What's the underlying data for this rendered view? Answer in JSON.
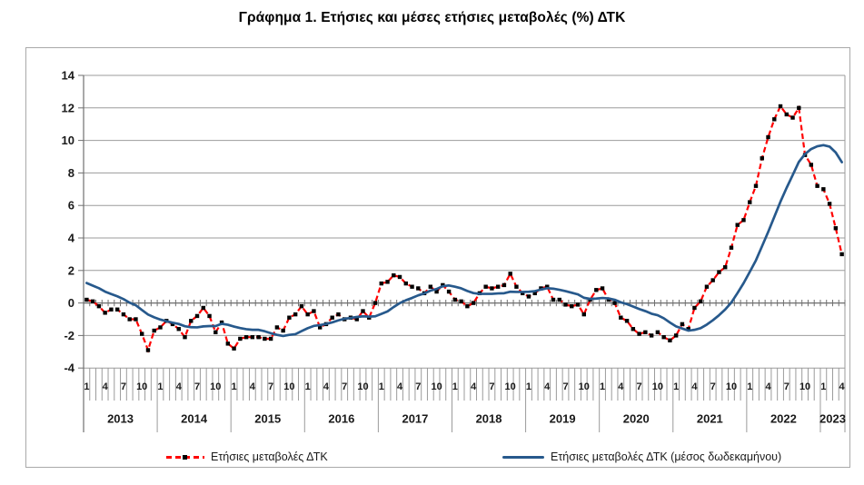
{
  "colors": {
    "red_series": "#FF0000",
    "marker": "#000000",
    "blue_series": "#27598C",
    "gridline": "#9B9B9B",
    "axis": "#707070",
    "text": "#1A1A1A",
    "frame_border": "#A9A9A9"
  },
  "chart_data": {
    "type": "line",
    "title": "Γράφημα 1. Ετήσιες και μέσες ετήσιες μεταβολές (%) ΔΤΚ",
    "ylabel": "",
    "xlabel": "",
    "ylim": [
      -4,
      14
    ],
    "y_tick_step": 2,
    "y_ticks": [
      "14",
      "12",
      "10",
      "8",
      "6",
      "4",
      "2",
      "0",
      "-2",
      "-4"
    ],
    "grid": "horizontal",
    "legend_position": "bottom",
    "years": [
      "2013",
      "2014",
      "2015",
      "2016",
      "2017",
      "2018",
      "2019",
      "2020",
      "2021",
      "2022",
      "2023"
    ],
    "months_per_year": [
      12,
      12,
      12,
      12,
      12,
      12,
      12,
      12,
      12,
      12,
      4
    ],
    "month_labels_shown": [
      "1",
      "4",
      "7",
      "10"
    ],
    "series": [
      {
        "name": "Ετήσιες μεταβολές ΔΤΚ",
        "style": "dashed-red-with-black-square-markers",
        "values": [
          0.2,
          0.1,
          -0.2,
          -0.6,
          -0.4,
          -0.4,
          -0.7,
          -1.0,
          -1.0,
          -1.9,
          -2.9,
          -1.7,
          -1.5,
          -1.1,
          -1.3,
          -1.6,
          -2.1,
          -1.1,
          -0.8,
          -0.3,
          -0.8,
          -1.8,
          -1.2,
          -2.5,
          -2.8,
          -2.2,
          -2.1,
          -2.1,
          -2.1,
          -2.2,
          -2.2,
          -1.5,
          -1.7,
          -0.9,
          -0.7,
          -0.2,
          -0.7,
          -0.5,
          -1.5,
          -1.3,
          -0.9,
          -0.7,
          -1.0,
          -0.9,
          -1.0,
          -0.5,
          -0.9,
          0.0,
          1.2,
          1.3,
          1.7,
          1.6,
          1.2,
          1.0,
          0.9,
          0.6,
          1.0,
          0.7,
          1.1,
          0.7,
          0.2,
          0.1,
          -0.2,
          0.0,
          0.6,
          1.0,
          0.9,
          1.0,
          1.1,
          1.8,
          1.0,
          0.6,
          0.4,
          0.6,
          0.9,
          1.0,
          0.2,
          0.2,
          -0.1,
          -0.2,
          -0.1,
          -0.7,
          0.2,
          0.8,
          0.9,
          0.2,
          0.0,
          -0.9,
          -1.1,
          -1.6,
          -1.9,
          -1.8,
          -2.0,
          -1.8,
          -2.1,
          -2.3,
          -2.0,
          -1.3,
          -1.6,
          -0.3,
          0.1,
          1.0,
          1.4,
          1.9,
          2.2,
          3.4,
          4.8,
          5.1,
          6.2,
          7.2,
          8.9,
          10.2,
          11.3,
          12.1,
          11.6,
          11.4,
          12.0,
          9.1,
          8.5,
          7.2,
          7.0,
          6.1,
          4.6,
          3.0
        ]
      },
      {
        "name": "Ετήσιες μεταβολές ΔΤΚ (μέσος δωδεκαμήνου)",
        "style": "solid-blue",
        "values": [
          1.23,
          1.07,
          0.91,
          0.7,
          0.55,
          0.41,
          0.24,
          0.02,
          -0.14,
          -0.43,
          -0.71,
          -0.88,
          -1.02,
          -1.12,
          -1.21,
          -1.29,
          -1.43,
          -1.49,
          -1.5,
          -1.44,
          -1.42,
          -1.42,
          -1.28,
          -1.34,
          -1.45,
          -1.54,
          -1.61,
          -1.65,
          -1.65,
          -1.74,
          -1.86,
          -1.96,
          -2.03,
          -1.96,
          -1.92,
          -1.73,
          -1.55,
          -1.41,
          -1.36,
          -1.29,
          -1.19,
          -1.07,
          -0.97,
          -0.92,
          -0.86,
          -0.82,
          -0.84,
          -0.82,
          -0.67,
          -0.52,
          -0.25,
          -0.01,
          0.17,
          0.31,
          0.47,
          0.59,
          0.76,
          0.86,
          1.03,
          1.08,
          1.0,
          0.9,
          0.74,
          0.61,
          0.56,
          0.56,
          0.56,
          0.59,
          0.6,
          0.69,
          0.68,
          0.68,
          0.69,
          0.73,
          0.83,
          0.91,
          0.88,
          0.81,
          0.73,
          0.63,
          0.53,
          0.32,
          0.25,
          0.27,
          0.31,
          0.28,
          0.2,
          0.04,
          -0.07,
          -0.22,
          -0.37,
          -0.5,
          -0.66,
          -0.75,
          -0.94,
          -1.2,
          -1.44,
          -1.57,
          -1.7,
          -1.65,
          -1.55,
          -1.33,
          -1.06,
          -0.75,
          -0.4,
          0.03,
          0.61,
          1.22,
          1.91,
          2.62,
          3.49,
          4.37,
          5.3,
          6.23,
          7.08,
          7.87,
          8.68,
          9.16,
          9.47,
          9.64,
          9.71,
          9.62,
          9.26,
          8.66
        ]
      }
    ]
  }
}
